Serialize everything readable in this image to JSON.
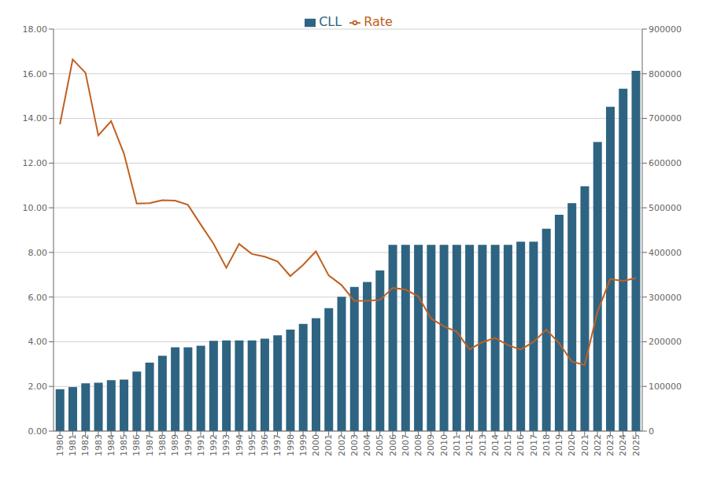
{
  "chart_data": {
    "type": "bar",
    "categories": [
      "1980",
      "1981",
      "1982",
      "1983",
      "1984",
      "1985",
      "1986",
      "1987",
      "1988",
      "1989",
      "1990",
      "1991",
      "1992",
      "1993",
      "1994",
      "1995",
      "1996",
      "1997",
      "1998",
      "1999",
      "2000",
      "2001",
      "2002",
      "2003",
      "2004",
      "2005",
      "2006",
      "2007",
      "2008",
      "2009",
      "2010",
      "2011",
      "2012",
      "2013",
      "2014",
      "2015",
      "2016",
      "2017",
      "2018",
      "2019",
      "2020",
      "2021",
      "2022",
      "2023",
      "2024",
      "2025"
    ],
    "series": [
      {
        "name": "CLL",
        "type": "bar",
        "axis": "y2",
        "color": "#2e6482",
        "values": [
          93750,
          98500,
          107000,
          108300,
          114000,
          115300,
          133250,
          153100,
          168700,
          187600,
          187450,
          191250,
          202300,
          203150,
          203150,
          203150,
          207000,
          214600,
          227150,
          240000,
          252700,
          275000,
          300700,
          322700,
          333700,
          359650,
          417000,
          417000,
          417000,
          417000,
          417000,
          417000,
          417000,
          417000,
          417000,
          417000,
          424100,
          424100,
          453100,
          484350,
          510400,
          548250,
          647200,
          726200,
          766550,
          806500
        ]
      },
      {
        "name": "Rate",
        "type": "line",
        "color": "#c06020",
        "values": [
          13.74,
          16.64,
          16.04,
          13.24,
          13.88,
          12.43,
          10.19,
          10.21,
          10.34,
          10.32,
          10.13,
          9.25,
          8.39,
          7.31,
          8.38,
          7.93,
          7.81,
          7.6,
          6.94,
          7.44,
          8.05,
          6.97,
          6.54,
          5.83,
          5.84,
          5.87,
          6.41,
          6.34,
          6.03,
          5.04,
          4.69,
          4.45,
          3.66,
          3.98,
          4.17,
          3.85,
          3.65,
          3.99,
          4.54,
          3.94,
          3.11,
          2.96,
          5.34,
          6.81,
          6.72,
          6.85
        ]
      }
    ],
    "ylim": [
      0,
      18
    ],
    "yticks": [
      {
        "value": 0,
        "label": "0.00"
      },
      {
        "value": 2,
        "label": "2.00"
      },
      {
        "value": 4,
        "label": "4.00"
      },
      {
        "value": 6,
        "label": "6.00"
      },
      {
        "value": 8,
        "label": "8.00"
      },
      {
        "value": 10,
        "label": "10.00"
      },
      {
        "value": 12,
        "label": "12.00"
      },
      {
        "value": 14,
        "label": "14.00"
      },
      {
        "value": 16,
        "label": "16.00"
      },
      {
        "value": 18,
        "label": "18.00"
      }
    ],
    "y2lim": [
      0,
      900000
    ],
    "y2ticks": [
      0,
      100000,
      200000,
      300000,
      400000,
      500000,
      600000,
      700000,
      800000,
      900000
    ],
    "grid": true,
    "legend": "top"
  }
}
